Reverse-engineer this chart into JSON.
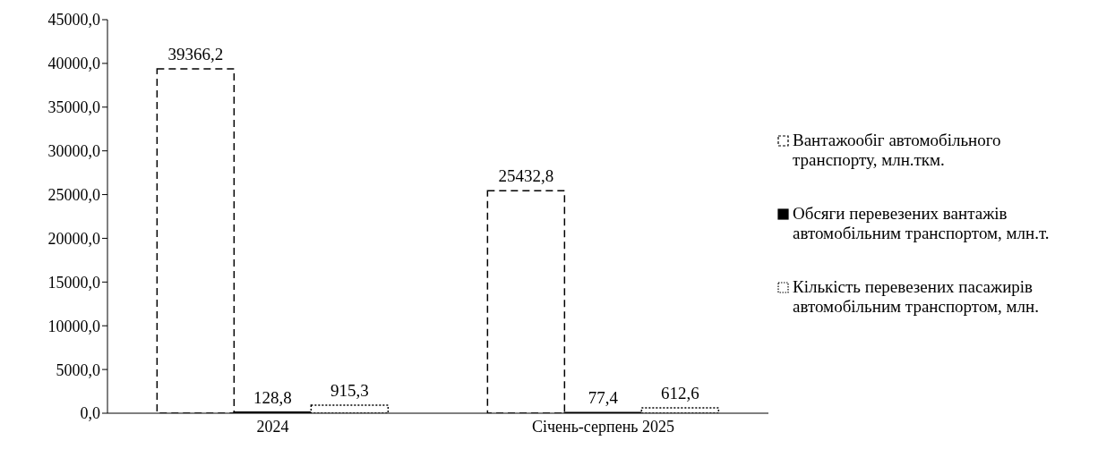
{
  "chart_data": {
    "type": "bar",
    "categories": [
      "2024",
      "Січень-серпень 2025"
    ],
    "series": [
      {
        "name": "Вантажообіг автомобільного транспорту, млн.ткм.",
        "color": "#000000",
        "line_style": "dashed",
        "values": [
          39366.2,
          25432.8
        ],
        "value_labels": [
          "39366,2",
          "25432,8"
        ]
      },
      {
        "name": "Обсяги перевезених вантажів автомобільним транспортом, млн.т.",
        "color": "#000000",
        "line_style": "solid",
        "values": [
          128.8,
          77.4
        ],
        "value_labels": [
          "128,8",
          "77,4"
        ]
      },
      {
        "name": "Кількість перевезених пасажирів автомобільним транспортом, млн.",
        "color": "#000000",
        "line_style": "dotted",
        "values": [
          915.3,
          612.6
        ],
        "value_labels": [
          "915,3",
          "612,6"
        ]
      }
    ],
    "ylim": [
      0,
      45000
    ],
    "yticks": [
      {
        "value": 0,
        "label": "0,0"
      },
      {
        "value": 5000,
        "label": "5000,0"
      },
      {
        "value": 10000,
        "label": "10000,0"
      },
      {
        "value": 15000,
        "label": "15000,0"
      },
      {
        "value": 20000,
        "label": "20000,0"
      },
      {
        "value": 25000,
        "label": "25000,0"
      },
      {
        "value": 30000,
        "label": "30000,0"
      },
      {
        "value": 35000,
        "label": "35000,0"
      },
      {
        "value": 40000,
        "label": "40000,0"
      },
      {
        "value": 45000,
        "label": "45000,0"
      }
    ],
    "grid": false,
    "legend": "right"
  }
}
